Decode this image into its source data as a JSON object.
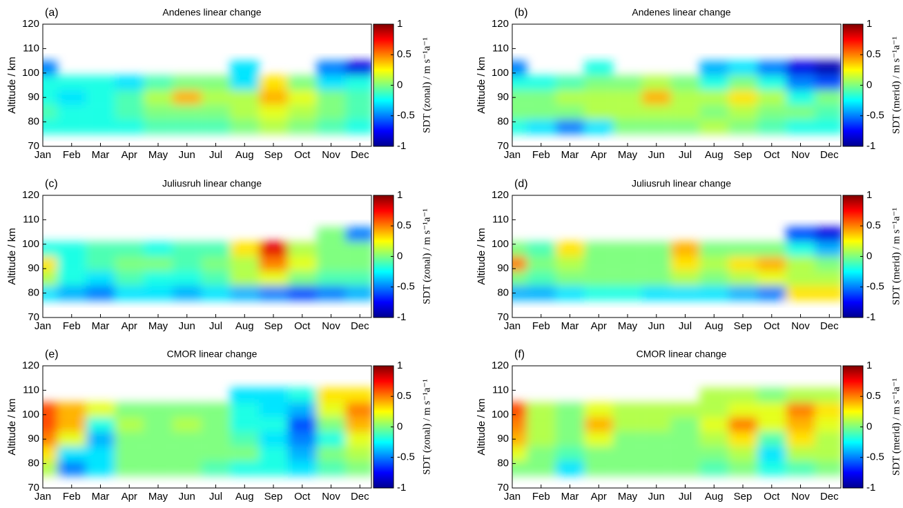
{
  "chart_data": [
    {
      "type": "heatmap",
      "tag": "(a)",
      "title": "Andenes linear change",
      "ylabel": "Altitude / km",
      "colorbar_label": "SDT (zonal) / m s⁻¹a⁻¹",
      "categories": [
        "Jan",
        "Feb",
        "Mar",
        "Apr",
        "May",
        "Jun",
        "Jul",
        "Aug",
        "Sep",
        "Oct",
        "Nov",
        "Dec"
      ],
      "ylim": [
        70,
        120
      ],
      "yticks": [
        70,
        80,
        90,
        100,
        110,
        120
      ],
      "clim": [
        -1,
        1
      ],
      "cticks": [
        -1,
        -0.5,
        0,
        0.5,
        1
      ],
      "y": [
        78,
        84,
        90,
        96,
        102
      ],
      "z": [
        [
          -0.2,
          -0.2,
          -0.2,
          -0.2,
          -0.1,
          -0.1,
          -0.1,
          0.0,
          0.1,
          0.0,
          -0.1,
          -0.2
        ],
        [
          -0.1,
          -0.2,
          -0.2,
          -0.1,
          0,
          0,
          0,
          0.1,
          0.2,
          0.1,
          0,
          -0.1
        ],
        [
          -0.2,
          -0.3,
          -0.2,
          -0.1,
          0.1,
          0.4,
          0.1,
          0.1,
          0.4,
          0.2,
          0,
          -0.1
        ],
        [
          -0.2,
          -0.2,
          -0.2,
          -0.3,
          -0.1,
          0,
          0,
          -0.3,
          0.3,
          0,
          -0.3,
          -0.2
        ],
        [
          -0.5,
          null,
          null,
          null,
          null,
          null,
          null,
          -0.3,
          null,
          null,
          -0.5,
          -0.8
        ]
      ]
    },
    {
      "type": "heatmap",
      "tag": "(b)",
      "title": "Andenes linear change",
      "ylabel": "Altitude / km",
      "colorbar_label": "SDT (merid) / m s⁻¹a⁻¹",
      "categories": [
        "Jan",
        "Feb",
        "Mar",
        "Apr",
        "May",
        "Jun",
        "Jul",
        "Aug",
        "Sep",
        "Oct",
        "Nov",
        "Dec"
      ],
      "ylim": [
        70,
        120
      ],
      "yticks": [
        70,
        80,
        90,
        100,
        110,
        120
      ],
      "clim": [
        -1,
        1
      ],
      "cticks": [
        -1,
        -0.5,
        0,
        0.5,
        1
      ],
      "y": [
        78,
        84,
        90,
        96,
        102
      ],
      "z": [
        [
          -0.2,
          -0.3,
          -0.5,
          -0.3,
          0,
          0,
          0,
          0.1,
          0,
          -0.1,
          -0.2,
          -0.2
        ],
        [
          0,
          0,
          0,
          0.1,
          0.1,
          0.1,
          0.1,
          0,
          0.1,
          0,
          0,
          -0.1
        ],
        [
          0,
          0,
          0.1,
          0.1,
          0.1,
          0.4,
          0.1,
          0.1,
          0.3,
          0.1,
          -0.2,
          0
        ],
        [
          -0.2,
          -0.2,
          -0.1,
          0,
          0,
          0.1,
          0,
          -0.2,
          0,
          -0.2,
          -0.5,
          -0.6
        ],
        [
          -0.5,
          null,
          null,
          -0.2,
          null,
          null,
          null,
          -0.4,
          -0.3,
          -0.5,
          -0.8,
          -0.9
        ]
      ]
    },
    {
      "type": "heatmap",
      "tag": "(c)",
      "title": "Juliusruh linear change",
      "ylabel": "Altitude / km",
      "colorbar_label": "SDT (zonal) / m s⁻¹a⁻¹",
      "categories": [
        "Jan",
        "Feb",
        "Mar",
        "Apr",
        "May",
        "Jun",
        "Jul",
        "Aug",
        "Sep",
        "Oct",
        "Nov",
        "Dec"
      ],
      "ylim": [
        70,
        120
      ],
      "yticks": [
        70,
        80,
        90,
        100,
        110,
        120
      ],
      "clim": [
        -1,
        1
      ],
      "cticks": [
        -1,
        -0.5,
        0,
        0.5,
        1
      ],
      "y": [
        80,
        86,
        92,
        98,
        104
      ],
      "z": [
        [
          -0.3,
          -0.4,
          -0.5,
          -0.3,
          -0.3,
          -0.4,
          -0.3,
          -0.4,
          -0.5,
          -0.6,
          -0.5,
          -0.4
        ],
        [
          0.1,
          -0.2,
          -0.3,
          -0.1,
          -0.2,
          -0.2,
          -0.1,
          0.1,
          0.2,
          0,
          -0.1,
          -0.1
        ],
        [
          0.3,
          -0.2,
          -0.1,
          0,
          0,
          -0.1,
          0,
          0.1,
          0.5,
          0.2,
          0,
          0
        ],
        [
          -0.2,
          -0.2,
          -0.1,
          -0.1,
          -0.2,
          -0.1,
          -0.1,
          0.3,
          0.8,
          0.1,
          0,
          0
        ],
        [
          null,
          null,
          null,
          null,
          null,
          null,
          null,
          null,
          null,
          null,
          0,
          -0.5
        ]
      ]
    },
    {
      "type": "heatmap",
      "tag": "(d)",
      "title": "Juliusruh linear change",
      "ylabel": "Altitude / km",
      "colorbar_label": "SDT (merid) / m s⁻¹a⁻¹",
      "categories": [
        "Jan",
        "Feb",
        "Mar",
        "Apr",
        "May",
        "Jun",
        "Jul",
        "Aug",
        "Sep",
        "Oct",
        "Nov",
        "Dec"
      ],
      "ylim": [
        70,
        120
      ],
      "yticks": [
        70,
        80,
        90,
        100,
        110,
        120
      ],
      "clim": [
        -1,
        1
      ],
      "cticks": [
        -1,
        -0.5,
        0,
        0.5,
        1
      ],
      "y": [
        80,
        86,
        92,
        98,
        104
      ],
      "z": [
        [
          -0.4,
          -0.4,
          -0.3,
          -0.2,
          -0.2,
          -0.3,
          -0.3,
          -0.3,
          -0.4,
          -0.5,
          0.3,
          0.3
        ],
        [
          0,
          -0.1,
          0,
          0,
          0,
          0,
          0.1,
          0,
          0.1,
          0.2,
          0.1,
          0.1
        ],
        [
          0.5,
          0,
          0.1,
          0,
          0,
          0,
          0.3,
          0.1,
          0.3,
          0.4,
          0.1,
          0
        ],
        [
          0,
          -0.1,
          0.3,
          0,
          0,
          0,
          0.4,
          0,
          0,
          0,
          -0.2,
          -0.4
        ],
        [
          null,
          null,
          null,
          null,
          null,
          null,
          null,
          null,
          null,
          null,
          -0.6,
          -0.8
        ]
      ]
    },
    {
      "type": "heatmap",
      "tag": "(e)",
      "title": "CMOR linear change",
      "ylabel": "Altitude / km",
      "colorbar_label": "SDT (zonal) / m s⁻¹a⁻¹",
      "categories": [
        "Jan",
        "Feb",
        "Mar",
        "Apr",
        "May",
        "Jun",
        "Jul",
        "Aug",
        "Sep",
        "Oct",
        "Nov",
        "Dec"
      ],
      "ylim": [
        70,
        120
      ],
      "yticks": [
        70,
        80,
        90,
        100,
        110,
        120
      ],
      "clim": [
        -1,
        1
      ],
      "cticks": [
        -1,
        -0.5,
        0,
        0.5,
        1
      ],
      "y": [
        78,
        84,
        90,
        96,
        102,
        108
      ],
      "z": [
        [
          0.1,
          -0.5,
          -0.3,
          0,
          0,
          0,
          -0.1,
          -0.2,
          -0.2,
          -0.3,
          -0.1,
          0
        ],
        [
          0.3,
          -0.3,
          -0.3,
          0,
          0,
          0,
          0,
          0,
          -0.2,
          -0.4,
          0,
          0.1
        ],
        [
          0.5,
          0.2,
          -0.4,
          0,
          0,
          0,
          0,
          -0.1,
          -0.3,
          -0.5,
          -0.2,
          0.2
        ],
        [
          0.6,
          0.4,
          -0.2,
          0.1,
          0,
          0.1,
          0,
          -0.2,
          -0.2,
          -0.6,
          0,
          0.4
        ],
        [
          0.6,
          0.4,
          0.2,
          0,
          0,
          0,
          0,
          -0.2,
          -0.3,
          -0.4,
          0.2,
          0.5
        ],
        [
          null,
          null,
          null,
          null,
          null,
          null,
          null,
          -0.3,
          -0.3,
          -0.2,
          0.3,
          0.3
        ]
      ]
    },
    {
      "type": "heatmap",
      "tag": "(f)",
      "title": "CMOR linear change",
      "ylabel": "Altitude / km",
      "colorbar_label": "SDT (merid) / m s⁻¹a⁻¹",
      "categories": [
        "Jan",
        "Feb",
        "Mar",
        "Apr",
        "May",
        "Jun",
        "Jul",
        "Aug",
        "Sep",
        "Oct",
        "Nov",
        "Dec"
      ],
      "ylim": [
        70,
        120
      ],
      "yticks": [
        70,
        80,
        90,
        100,
        110,
        120
      ],
      "clim": [
        -1,
        1
      ],
      "cticks": [
        -1,
        -0.5,
        0,
        0.5,
        1
      ],
      "y": [
        78,
        84,
        90,
        96,
        102,
        108
      ],
      "z": [
        [
          0,
          0,
          -0.3,
          0,
          0,
          0,
          0,
          -0.1,
          0,
          -0.2,
          -0.1,
          0
        ],
        [
          0.2,
          0,
          -0.1,
          0,
          0,
          0,
          0,
          0,
          0.1,
          -0.3,
          0.1,
          0.1
        ],
        [
          0.4,
          0.1,
          0,
          0.2,
          0,
          0,
          0,
          0.1,
          0.3,
          -0.1,
          0.3,
          0.1
        ],
        [
          0.5,
          0.1,
          0,
          0.4,
          0.1,
          0.1,
          0,
          0.2,
          0.5,
          0.2,
          0.4,
          0.2
        ],
        [
          0.6,
          0.1,
          0,
          0.2,
          0.1,
          0.1,
          0.1,
          0.1,
          0.2,
          0.2,
          0.5,
          0.3
        ],
        [
          null,
          null,
          null,
          null,
          null,
          null,
          null,
          0.1,
          0.1,
          0,
          0.1,
          0.1
        ]
      ]
    }
  ]
}
